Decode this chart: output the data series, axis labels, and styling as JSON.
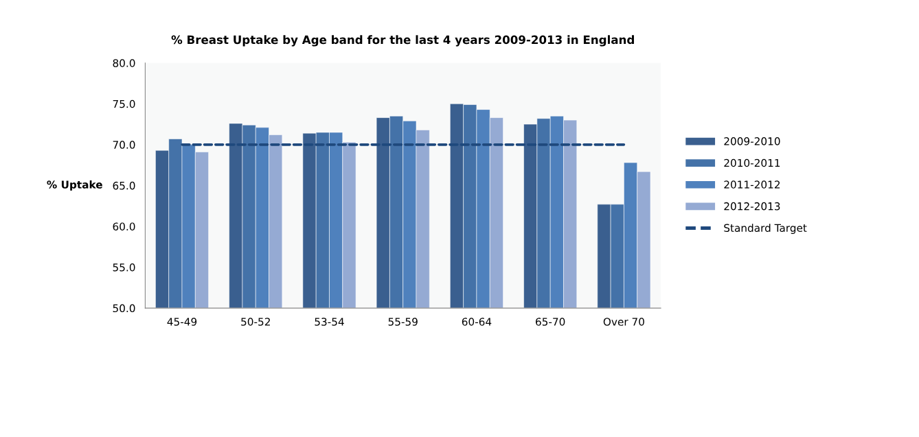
{
  "chart_data": {
    "type": "bar",
    "title": "% Breast Uptake by Age band for the last 4 years 2009-2013 in England",
    "ylabel": "% Uptake",
    "categories": [
      "45-49",
      "50-52",
      "53-54",
      "55-59",
      "60-64",
      "65-70",
      "Over 70"
    ],
    "series": [
      {
        "name": "2009-2010",
        "color": "#3a5f8f",
        "values": [
          69.3,
          72.6,
          71.4,
          73.3,
          75.0,
          72.5,
          62.7
        ]
      },
      {
        "name": "2010-2011",
        "color": "#4472a8",
        "values": [
          70.7,
          72.4,
          71.5,
          73.5,
          74.9,
          73.2,
          62.7
        ]
      },
      {
        "name": "2011-2012",
        "color": "#4f81bd",
        "values": [
          70.0,
          72.1,
          71.5,
          72.9,
          74.3,
          73.5,
          67.8
        ]
      },
      {
        "name": "2012-2013",
        "color": "#95aad3",
        "values": [
          69.1,
          71.2,
          70.3,
          71.8,
          73.3,
          73.0,
          66.7
        ]
      },
      {
        "name": "Standard Target",
        "type": "line",
        "color": "#1f497d",
        "line_style": "dashed",
        "values": [
          70,
          70,
          70,
          70,
          70,
          70,
          70
        ]
      }
    ],
    "ylim": [
      50,
      80
    ],
    "yticks": [
      {
        "value": 50,
        "label": "50.0"
      },
      {
        "value": 55,
        "label": "55.0"
      },
      {
        "value": 60,
        "label": "60.0"
      },
      {
        "value": 65,
        "label": "65.0"
      },
      {
        "value": 70,
        "label": "70.0"
      },
      {
        "value": 75,
        "label": "75.0"
      },
      {
        "value": 80,
        "label": "80.0"
      }
    ],
    "grid": false,
    "legend": "right"
  }
}
